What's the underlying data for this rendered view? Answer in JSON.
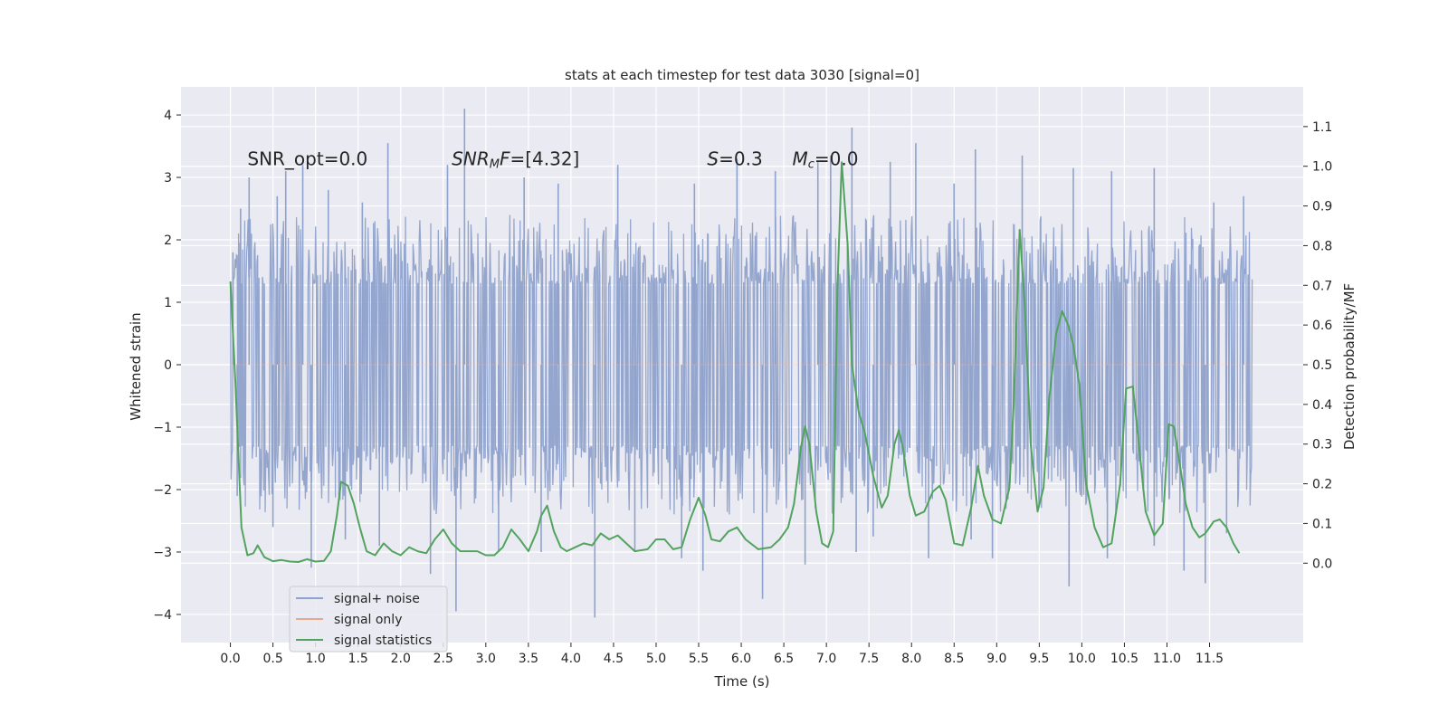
{
  "chart_data": {
    "type": "line",
    "title": "stats at each timestep for test data 3030 [signal=0]",
    "xlabel": "Time (s)",
    "ylabel_left": "Whitened strain",
    "ylabel_right": "Detection probability/MF",
    "xlim": [
      -0.58,
      12.6
    ],
    "ylim_left": [
      -4.45,
      4.45
    ],
    "ylim_right": [
      -0.2,
      1.2
    ],
    "x_ticks": [
      "0.0",
      "0.5",
      "1.0",
      "1.5",
      "2.0",
      "2.5",
      "3.0",
      "3.5",
      "4.0",
      "4.5",
      "5.0",
      "5.5",
      "6.0",
      "6.5",
      "7.0",
      "7.5",
      "8.0",
      "8.5",
      "9.0",
      "9.5",
      "10.0",
      "10.5",
      "11.0",
      "11.5"
    ],
    "y_left_ticks": [
      "4",
      "3",
      "2",
      "1",
      "0",
      "−1",
      "−2",
      "−3",
      "−4"
    ],
    "y_right_ticks": [
      "1.1",
      "1.0",
      "0.9",
      "0.8",
      "0.7",
      "0.6",
      "0.5",
      "0.4",
      "0.3",
      "0.2",
      "0.1",
      "0.0"
    ],
    "grid": true,
    "legend_position": "lower-left",
    "annotations": [
      {
        "text": "SNR_opt=0.0",
        "x": 0.2,
        "y": 3.3
      },
      {
        "text": "SNR_M F=[4.32]",
        "x": 2.6,
        "y": 3.3
      },
      {
        "text": "S=0.3",
        "x": 5.6,
        "y": 3.3
      },
      {
        "text": "M_c=0.0",
        "x": 6.6,
        "y": 3.3
      }
    ],
    "series": [
      {
        "name": "signal+ noise",
        "axis": "left",
        "color": "#8fa2cb",
        "style": "dense noise, x 0.0–12.0 s, typical band ±1.3, occasional spikes",
        "spikes": [
          {
            "x": 0.03,
            "y": 1.8
          },
          {
            "x": 0.12,
            "y": 2.5
          },
          {
            "x": 0.22,
            "y": 3.0
          },
          {
            "x": 0.55,
            "y": 2.7
          },
          {
            "x": 0.65,
            "y": 3.1
          },
          {
            "x": 0.85,
            "y": 3.2
          },
          {
            "x": 1.15,
            "y": 2.8
          },
          {
            "x": 1.55,
            "y": 2.6
          },
          {
            "x": 1.85,
            "y": 3.55
          },
          {
            "x": 2.55,
            "y": 3.2
          },
          {
            "x": 2.75,
            "y": 4.1
          },
          {
            "x": 3.45,
            "y": 3.0
          },
          {
            "x": 3.85,
            "y": 2.9
          },
          {
            "x": 4.55,
            "y": 3.2
          },
          {
            "x": 5.45,
            "y": 2.9
          },
          {
            "x": 5.95,
            "y": 3.3
          },
          {
            "x": 6.4,
            "y": 3.1
          },
          {
            "x": 6.9,
            "y": 3.25
          },
          {
            "x": 7.05,
            "y": 3.35
          },
          {
            "x": 7.3,
            "y": 3.8
          },
          {
            "x": 7.75,
            "y": 3.25
          },
          {
            "x": 8.05,
            "y": 3.55
          },
          {
            "x": 8.5,
            "y": 2.9
          },
          {
            "x": 8.75,
            "y": 3.45
          },
          {
            "x": 9.3,
            "y": 3.35
          },
          {
            "x": 9.9,
            "y": 3.15
          },
          {
            "x": 10.35,
            "y": 3.1
          },
          {
            "x": 10.85,
            "y": 3.15
          },
          {
            "x": 11.55,
            "y": 2.6
          },
          {
            "x": 11.9,
            "y": 2.7
          },
          {
            "x": 0.08,
            "y": -2.1
          },
          {
            "x": 0.5,
            "y": -2.6
          },
          {
            "x": 0.95,
            "y": -3.25
          },
          {
            "x": 1.35,
            "y": -2.8
          },
          {
            "x": 1.75,
            "y": -2.9
          },
          {
            "x": 2.35,
            "y": -3.35
          },
          {
            "x": 2.65,
            "y": -3.95
          },
          {
            "x": 3.15,
            "y": -3.0
          },
          {
            "x": 3.65,
            "y": -3.0
          },
          {
            "x": 4.28,
            "y": -4.05
          },
          {
            "x": 4.75,
            "y": -3.0
          },
          {
            "x": 5.3,
            "y": -3.1
          },
          {
            "x": 5.55,
            "y": -3.3
          },
          {
            "x": 6.25,
            "y": -3.75
          },
          {
            "x": 6.75,
            "y": -3.2
          },
          {
            "x": 7.35,
            "y": -3.0
          },
          {
            "x": 7.55,
            "y": -2.75
          },
          {
            "x": 8.2,
            "y": -3.1
          },
          {
            "x": 8.7,
            "y": -2.8
          },
          {
            "x": 8.95,
            "y": -3.1
          },
          {
            "x": 9.85,
            "y": -3.55
          },
          {
            "x": 10.3,
            "y": -3.1
          },
          {
            "x": 10.85,
            "y": -2.9
          },
          {
            "x": 11.2,
            "y": -3.3
          },
          {
            "x": 11.45,
            "y": -3.5
          },
          {
            "x": 11.7,
            "y": -2.7
          }
        ]
      },
      {
        "name": "signal only",
        "axis": "left",
        "color": "#e7a98e",
        "points": [
          [
            0.0,
            0.0
          ],
          [
            12.0,
            0.0
          ]
        ]
      },
      {
        "name": "signal statistics",
        "axis": "right",
        "color": "#52a35e",
        "points": [
          [
            0.0,
            0.71
          ],
          [
            0.06,
            0.45
          ],
          [
            0.13,
            0.09
          ],
          [
            0.2,
            0.02
          ],
          [
            0.27,
            0.025
          ],
          [
            0.32,
            0.045
          ],
          [
            0.4,
            0.015
          ],
          [
            0.5,
            0.005
          ],
          [
            0.6,
            0.008
          ],
          [
            0.7,
            0.004
          ],
          [
            0.8,
            0.003
          ],
          [
            0.9,
            0.01
          ],
          [
            1.0,
            0.004
          ],
          [
            1.1,
            0.006
          ],
          [
            1.18,
            0.03
          ],
          [
            1.25,
            0.12
          ],
          [
            1.3,
            0.205
          ],
          [
            1.38,
            0.195
          ],
          [
            1.45,
            0.15
          ],
          [
            1.52,
            0.09
          ],
          [
            1.6,
            0.03
          ],
          [
            1.7,
            0.02
          ],
          [
            1.8,
            0.05
          ],
          [
            1.9,
            0.03
          ],
          [
            2.0,
            0.02
          ],
          [
            2.1,
            0.04
          ],
          [
            2.2,
            0.03
          ],
          [
            2.3,
            0.025
          ],
          [
            2.4,
            0.06
          ],
          [
            2.5,
            0.085
          ],
          [
            2.6,
            0.05
          ],
          [
            2.7,
            0.03
          ],
          [
            2.9,
            0.03
          ],
          [
            3.0,
            0.02
          ],
          [
            3.1,
            0.02
          ],
          [
            3.2,
            0.04
          ],
          [
            3.3,
            0.085
          ],
          [
            3.4,
            0.06
          ],
          [
            3.5,
            0.03
          ],
          [
            3.6,
            0.08
          ],
          [
            3.65,
            0.12
          ],
          [
            3.72,
            0.145
          ],
          [
            3.8,
            0.08
          ],
          [
            3.88,
            0.04
          ],
          [
            3.95,
            0.03
          ],
          [
            4.05,
            0.04
          ],
          [
            4.15,
            0.05
          ],
          [
            4.25,
            0.045
          ],
          [
            4.35,
            0.075
          ],
          [
            4.45,
            0.06
          ],
          [
            4.55,
            0.07
          ],
          [
            4.65,
            0.05
          ],
          [
            4.75,
            0.03
          ],
          [
            4.9,
            0.035
          ],
          [
            5.0,
            0.06
          ],
          [
            5.1,
            0.06
          ],
          [
            5.2,
            0.035
          ],
          [
            5.3,
            0.04
          ],
          [
            5.4,
            0.11
          ],
          [
            5.5,
            0.165
          ],
          [
            5.58,
            0.12
          ],
          [
            5.65,
            0.06
          ],
          [
            5.75,
            0.055
          ],
          [
            5.85,
            0.08
          ],
          [
            5.95,
            0.09
          ],
          [
            6.05,
            0.06
          ],
          [
            6.2,
            0.035
          ],
          [
            6.35,
            0.04
          ],
          [
            6.45,
            0.06
          ],
          [
            6.55,
            0.09
          ],
          [
            6.62,
            0.15
          ],
          [
            6.7,
            0.29
          ],
          [
            6.75,
            0.345
          ],
          [
            6.8,
            0.3
          ],
          [
            6.88,
            0.13
          ],
          [
            6.95,
            0.05
          ],
          [
            7.02,
            0.04
          ],
          [
            7.08,
            0.08
          ],
          [
            7.13,
            0.7
          ],
          [
            7.18,
            1.01
          ],
          [
            7.25,
            0.8
          ],
          [
            7.3,
            0.5
          ],
          [
            7.38,
            0.38
          ],
          [
            7.45,
            0.33
          ],
          [
            7.55,
            0.22
          ],
          [
            7.65,
            0.14
          ],
          [
            7.72,
            0.17
          ],
          [
            7.8,
            0.3
          ],
          [
            7.85,
            0.335
          ],
          [
            7.9,
            0.29
          ],
          [
            7.98,
            0.17
          ],
          [
            8.05,
            0.12
          ],
          [
            8.15,
            0.13
          ],
          [
            8.25,
            0.18
          ],
          [
            8.33,
            0.195
          ],
          [
            8.4,
            0.16
          ],
          [
            8.5,
            0.05
          ],
          [
            8.6,
            0.045
          ],
          [
            8.7,
            0.14
          ],
          [
            8.78,
            0.245
          ],
          [
            8.85,
            0.17
          ],
          [
            8.95,
            0.11
          ],
          [
            9.05,
            0.1
          ],
          [
            9.15,
            0.19
          ],
          [
            9.2,
            0.4
          ],
          [
            9.27,
            0.84
          ],
          [
            9.33,
            0.65
          ],
          [
            9.4,
            0.3
          ],
          [
            9.48,
            0.13
          ],
          [
            9.55,
            0.19
          ],
          [
            9.62,
            0.42
          ],
          [
            9.7,
            0.58
          ],
          [
            9.77,
            0.635
          ],
          [
            9.84,
            0.6
          ],
          [
            9.9,
            0.55
          ],
          [
            9.97,
            0.45
          ],
          [
            10.05,
            0.2
          ],
          [
            10.15,
            0.09
          ],
          [
            10.25,
            0.04
          ],
          [
            10.35,
            0.05
          ],
          [
            10.45,
            0.2
          ],
          [
            10.52,
            0.44
          ],
          [
            10.6,
            0.445
          ],
          [
            10.67,
            0.3
          ],
          [
            10.75,
            0.13
          ],
          [
            10.85,
            0.07
          ],
          [
            10.95,
            0.1
          ],
          [
            11.02,
            0.35
          ],
          [
            11.08,
            0.345
          ],
          [
            11.15,
            0.25
          ],
          [
            11.22,
            0.15
          ],
          [
            11.3,
            0.09
          ],
          [
            11.38,
            0.065
          ],
          [
            11.45,
            0.075
          ],
          [
            11.55,
            0.105
          ],
          [
            11.62,
            0.11
          ],
          [
            11.7,
            0.09
          ],
          [
            11.78,
            0.05
          ],
          [
            11.85,
            0.025
          ]
        ]
      }
    ]
  }
}
